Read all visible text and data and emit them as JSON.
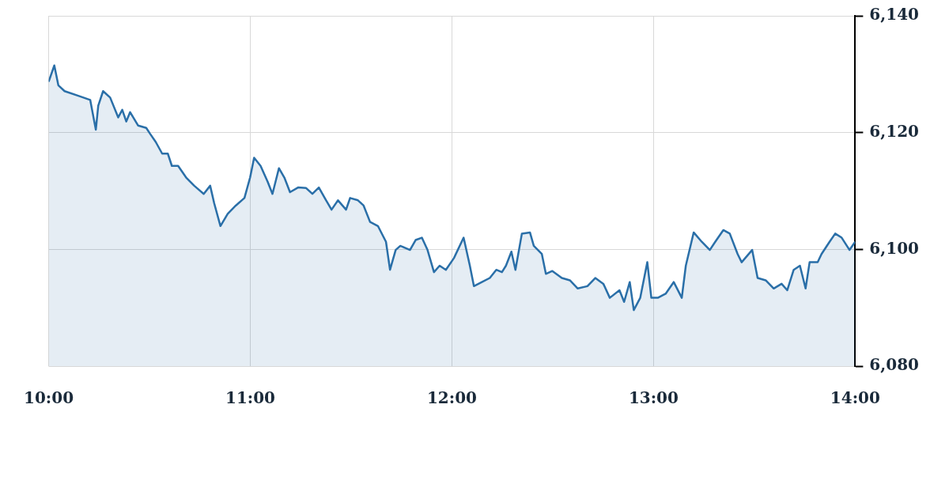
{
  "chart_data": {
    "type": "area",
    "grid": true,
    "legend": false,
    "marker": "none",
    "line_style": "solid",
    "xlim": [
      10,
      14
    ],
    "xticks": [
      {
        "value": 10,
        "label": "10:00"
      },
      {
        "value": 11,
        "label": "11:00"
      },
      {
        "value": 12,
        "label": "12:00"
      },
      {
        "value": 13,
        "label": "13:00"
      },
      {
        "value": 14,
        "label": "14:00"
      }
    ],
    "ylim": [
      6080,
      6140
    ],
    "yticks": [
      {
        "value": 6080,
        "label": "6,080"
      },
      {
        "value": 6100,
        "label": "6,100"
      },
      {
        "value": 6120,
        "label": "6,120"
      },
      {
        "value": 6140,
        "label": "6,140"
      }
    ],
    "series": [
      {
        "color": "#2a6fa8",
        "x": [
          10.0,
          10.028,
          10.048,
          10.079,
          10.147,
          10.206,
          10.234,
          10.246,
          10.27,
          10.305,
          10.345,
          10.365,
          10.385,
          10.404,
          10.444,
          10.484,
          10.503,
          10.531,
          10.563,
          10.591,
          10.611,
          10.642,
          10.682,
          10.722,
          10.769,
          10.801,
          10.821,
          10.852,
          10.888,
          10.928,
          10.971,
          10.999,
          11.019,
          11.051,
          11.086,
          11.11,
          11.142,
          11.169,
          11.197,
          11.237,
          11.277,
          11.308,
          11.34,
          11.376,
          11.403,
          11.435,
          11.475,
          11.495,
          11.534,
          11.562,
          11.594,
          11.633,
          11.673,
          11.693,
          11.721,
          11.744,
          11.792,
          11.82,
          11.851,
          11.879,
          11.911,
          11.939,
          11.97,
          12.01,
          12.058,
          12.089,
          12.109,
          12.149,
          12.188,
          12.22,
          12.248,
          12.268,
          12.295,
          12.315,
          12.347,
          12.387,
          12.406,
          12.446,
          12.466,
          12.498,
          12.545,
          12.585,
          12.624,
          12.672,
          12.711,
          12.751,
          12.783,
          12.831,
          12.854,
          12.882,
          12.902,
          12.934,
          12.969,
          12.989,
          13.021,
          13.06,
          13.1,
          13.14,
          13.16,
          13.199,
          13.239,
          13.279,
          13.306,
          13.346,
          13.378,
          13.417,
          13.437,
          13.489,
          13.516,
          13.556,
          13.596,
          13.635,
          13.663,
          13.695,
          13.726,
          13.754,
          13.774,
          13.814,
          13.833,
          13.873,
          13.901,
          13.933,
          13.972,
          14.0
        ],
        "values": [
          6128.7,
          6131.5,
          6128.1,
          6127.1,
          6126.3,
          6125.6,
          6120.5,
          6124.6,
          6127.1,
          6126.0,
          6122.6,
          6123.9,
          6121.9,
          6123.5,
          6121.2,
          6120.8,
          6119.8,
          6118.4,
          6116.4,
          6116.4,
          6114.3,
          6114.3,
          6112.3,
          6110.9,
          6109.5,
          6110.9,
          6107.9,
          6104.0,
          6106.1,
          6107.5,
          6108.8,
          6112.3,
          6115.7,
          6114.3,
          6111.6,
          6109.5,
          6113.9,
          6112.3,
          6109.8,
          6110.6,
          6110.5,
          6109.5,
          6110.6,
          6108.4,
          6106.8,
          6108.4,
          6106.8,
          6108.8,
          6108.4,
          6107.5,
          6104.7,
          6104.0,
          6101.3,
          6096.5,
          6099.9,
          6100.6,
          6099.9,
          6101.6,
          6102.0,
          6099.9,
          6096.1,
          6097.2,
          6096.5,
          6098.5,
          6102.0,
          6097.2,
          6093.7,
          6094.4,
          6095.1,
          6096.5,
          6096.1,
          6097.2,
          6099.6,
          6096.5,
          6102.7,
          6102.9,
          6100.6,
          6099.2,
          6095.8,
          6096.3,
          6095.1,
          6094.7,
          6093.3,
          6093.7,
          6095.1,
          6094.1,
          6091.7,
          6093.0,
          6091.0,
          6094.4,
          6089.6,
          6091.7,
          6097.8,
          6091.7,
          6091.7,
          6092.4,
          6094.4,
          6091.7,
          6097.2,
          6102.9,
          6101.3,
          6099.9,
          6101.3,
          6103.3,
          6102.7,
          6099.2,
          6097.8,
          6099.9,
          6095.1,
          6094.7,
          6093.3,
          6094.1,
          6093.0,
          6096.5,
          6097.2,
          6093.3,
          6097.8,
          6097.8,
          6099.2,
          6101.3,
          6102.7,
          6102.0,
          6099.9,
          6101.3
        ]
      }
    ]
  }
}
